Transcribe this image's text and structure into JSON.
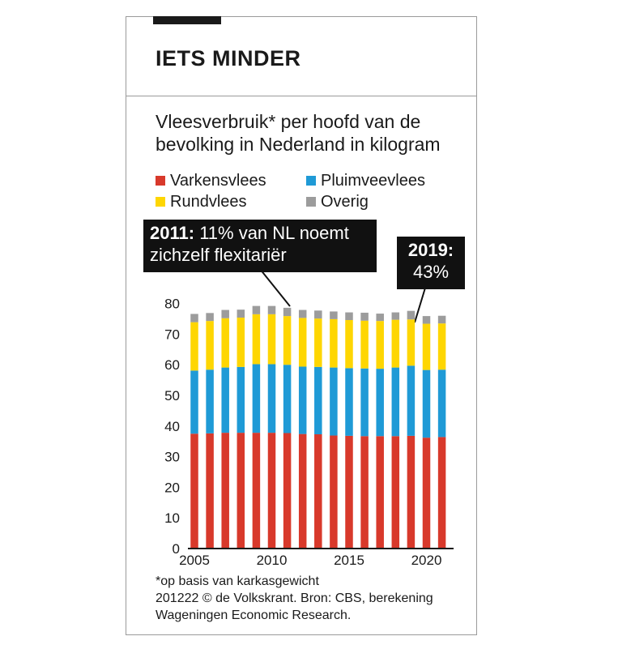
{
  "kicker": "IETS MINDER",
  "subtitle": "Vleesverbruik* per hoofd van de bevolking in Nederland in kilogram",
  "legend": [
    {
      "label": "Varkensvlees",
      "color": "#d8392b"
    },
    {
      "label": "Pluimveevlees",
      "color": "#1f9ad6"
    },
    {
      "label": "Rundvlees",
      "color": "#fed602"
    },
    {
      "label": "Overig",
      "color": "#9c9c9c"
    }
  ],
  "callouts": [
    {
      "year_label": "2011:",
      "text": "11% van NL noemt zichzelf flexitariër",
      "line1_rest": "11% van NL noemt",
      "line2": "zichzelf flexitariër"
    },
    {
      "year_label": "2019:",
      "text": "43%"
    }
  ],
  "footnote": "*op basis van karkasgewicht",
  "source_line1": "201222 © de Volkskrant. Bron: CBS, berekening",
  "source_line2": "Wageningen Economic Research.",
  "chart_data": {
    "type": "bar",
    "stacked": true,
    "x": [
      2005,
      2006,
      2007,
      2008,
      2009,
      2010,
      2011,
      2012,
      2013,
      2014,
      2015,
      2016,
      2017,
      2018,
      2019,
      2020,
      2021
    ],
    "x_tick_labels": [
      "2005",
      "2010",
      "2015",
      "2020"
    ],
    "y_tick_labels": [
      "0",
      "10",
      "20",
      "30",
      "40",
      "50",
      "60",
      "70",
      "80"
    ],
    "ylim": [
      0,
      80
    ],
    "series": [
      {
        "name": "Varkensvlees",
        "color": "#d8392b",
        "values": [
          37.5,
          37.6,
          37.8,
          37.8,
          37.8,
          37.8,
          37.7,
          37.4,
          37.3,
          36.9,
          36.8,
          36.7,
          36.7,
          36.7,
          36.8,
          36.2,
          36.4
        ]
      },
      {
        "name": "Pluimveevlees",
        "color": "#1f9ad6",
        "values": [
          20.6,
          20.8,
          21.3,
          21.5,
          22.4,
          22.4,
          22.3,
          22.0,
          22.0,
          22.2,
          22.1,
          22.1,
          22.0,
          22.4,
          22.9,
          22.1,
          22.0
        ]
      },
      {
        "name": "Rundvlees",
        "color": "#fed602",
        "values": [
          15.8,
          15.9,
          16.1,
          16.1,
          16.3,
          16.3,
          15.9,
          15.9,
          15.8,
          15.8,
          15.7,
          15.6,
          15.6,
          15.6,
          15.1,
          15.1,
          15.1
        ]
      },
      {
        "name": "Overig",
        "color": "#9c9c9c",
        "values": [
          2.7,
          2.6,
          2.7,
          2.6,
          2.7,
          2.7,
          2.7,
          2.6,
          2.6,
          2.5,
          2.5,
          2.6,
          2.4,
          2.4,
          2.8,
          2.5,
          2.5
        ]
      }
    ],
    "grid": false,
    "legend_position": "top-left"
  }
}
